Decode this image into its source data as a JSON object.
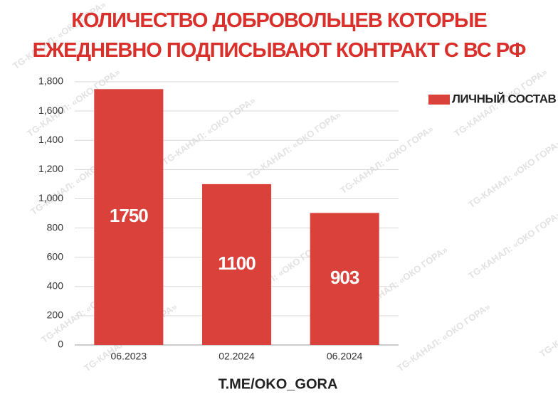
{
  "chart_data": {
    "type": "bar",
    "title": "КОЛИЧЕСТВО ДОБРОВОЛЬЦЕВ КОТОРЫЕ ЕЖЕДНЕВНО ПОДПИСЫВАЮТ КОНТРАКТ С ВС РФ",
    "categories": [
      "06.2023",
      "02.2024",
      "06.2024"
    ],
    "series": [
      {
        "name": "ЛИЧНЫЙ СОСТАВ",
        "color": "#d9413a",
        "values": [
          1750,
          1100,
          903
        ]
      }
    ],
    "ylim": [
      0,
      1800
    ],
    "yticks": [
      0,
      200,
      400,
      600,
      800,
      {
        "value": 1000,
        "label": "1,000"
      },
      {
        "value": 1200,
        "label": "1,200"
      },
      {
        "value": 1400,
        "label": "1,400"
      },
      {
        "value": 1600,
        "label": "1,600"
      },
      {
        "value": 1800,
        "label": "1,800"
      }
    ],
    "xlabel": "T.ME/OKO_GORA",
    "grid": true,
    "legend": "right",
    "watermark": "TG-КАНАЛ: «ОКО ГОРА»"
  }
}
